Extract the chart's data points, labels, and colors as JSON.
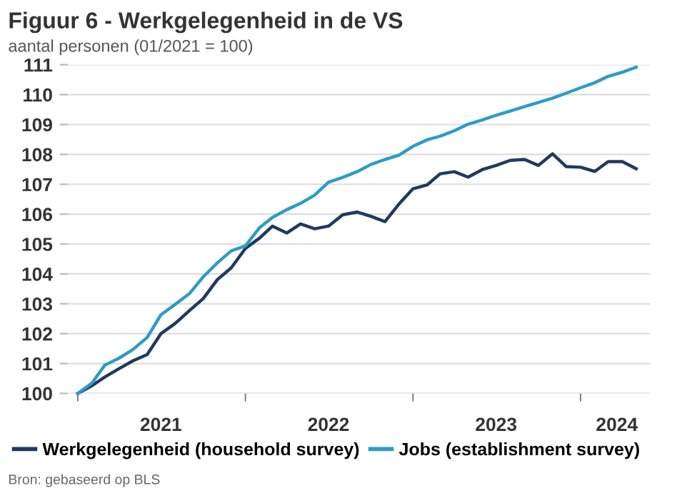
{
  "chart_data": {
    "type": "line",
    "title": "Figuur 6 - Werkgelegenheid in de VS",
    "subtitle": "aantal personen (01/2021 = 100)",
    "annotations": [
      "Bron: gebaseerd op BLS"
    ],
    "x": [
      "2021-01",
      "2021-02",
      "2021-03",
      "2021-04",
      "2021-05",
      "2021-06",
      "2021-07",
      "2021-08",
      "2021-09",
      "2021-10",
      "2021-11",
      "2021-12",
      "2022-01",
      "2022-02",
      "2022-03",
      "2022-04",
      "2022-05",
      "2022-06",
      "2022-07",
      "2022-08",
      "2022-09",
      "2022-10",
      "2022-11",
      "2022-12",
      "2023-01",
      "2023-02",
      "2023-03",
      "2023-04",
      "2023-05",
      "2023-06",
      "2023-07",
      "2023-08",
      "2023-09",
      "2023-10",
      "2023-11",
      "2023-12",
      "2024-01",
      "2024-02",
      "2024-03",
      "2024-04",
      "2024-05"
    ],
    "series": [
      {
        "name": "Werkgelegenheid (household survey)",
        "color": "#1f3a5f",
        "values": [
          100,
          100.26,
          100.55,
          100.83,
          101.09,
          101.3,
          102.0,
          102.34,
          102.77,
          103.17,
          103.81,
          104.2,
          104.85,
          105.2,
          105.6,
          105.37,
          105.67,
          105.51,
          105.6,
          105.98,
          106.07,
          105.93,
          105.75,
          106.33,
          106.85,
          106.98,
          107.35,
          107.42,
          107.24,
          107.49,
          107.63,
          107.8,
          107.83,
          107.63,
          108.02,
          107.59,
          107.57,
          107.43,
          107.76,
          107.76,
          107.52
        ]
      },
      {
        "name": "Jobs (establishment survey)",
        "color": "#2e9cc4",
        "values": [
          100,
          100.35,
          100.95,
          101.18,
          101.47,
          101.87,
          102.63,
          102.98,
          103.34,
          103.9,
          104.37,
          104.77,
          104.94,
          105.55,
          105.89,
          106.15,
          106.36,
          106.64,
          107.07,
          107.23,
          107.42,
          107.66,
          107.83,
          107.97,
          108.27,
          108.49,
          108.61,
          108.79,
          109.01,
          109.15,
          109.31,
          109.45,
          109.6,
          109.74,
          109.88,
          110.05,
          110.23,
          110.4,
          110.61,
          110.75,
          110.92
        ]
      }
    ],
    "xlim": [
      "2020-12-10",
      "2024-05-31"
    ],
    "xticks": [
      {
        "value": "2021-01-01",
        "label": null
      },
      {
        "value": "2021-07-01",
        "label": "2021"
      },
      {
        "value": "2022-01-01",
        "label": null
      },
      {
        "value": "2022-07-01",
        "label": "2022"
      },
      {
        "value": "2023-01-01",
        "label": null
      },
      {
        "value": "2023-07-01",
        "label": "2023"
      },
      {
        "value": "2024-01-01",
        "label": null
      },
      {
        "value": "2024-03-20",
        "label": "2024"
      }
    ],
    "ylim": [
      100,
      111
    ],
    "yticks": [
      100,
      101,
      102,
      103,
      104,
      105,
      106,
      107,
      108,
      109,
      110,
      111
    ],
    "grid": "y",
    "legend": "bottom",
    "marker": "none",
    "line_style": "solid"
  }
}
